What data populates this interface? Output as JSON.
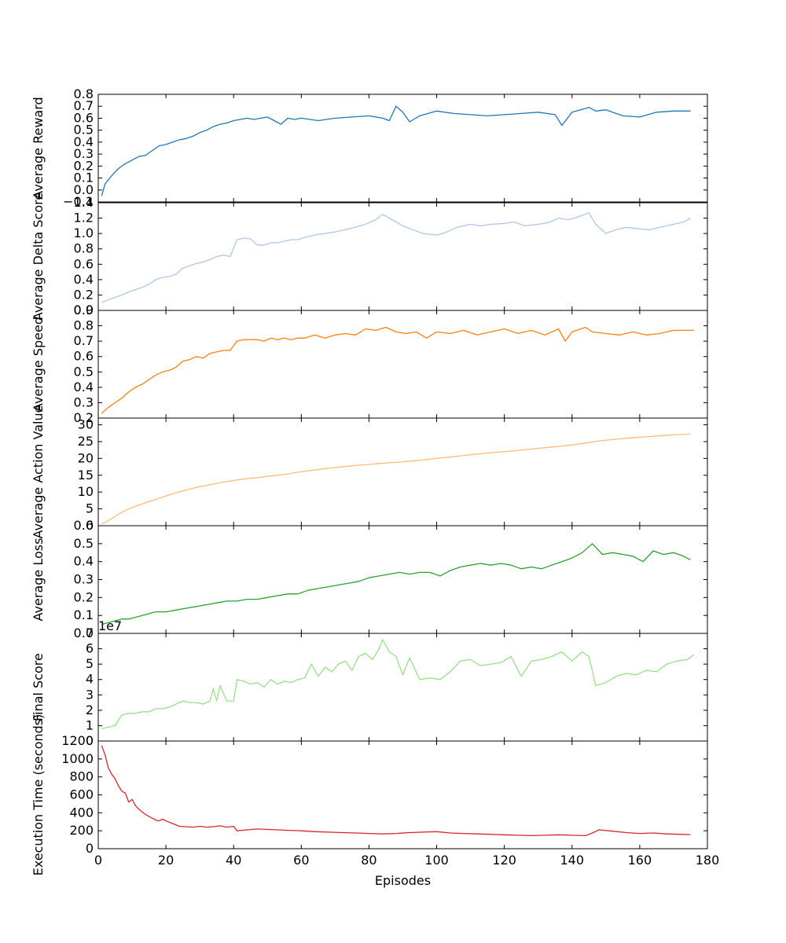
{
  "figure": {
    "xlabel": "Episodes"
  },
  "chart_data": [
    {
      "type": "line",
      "ylabel": "Average Reward",
      "xlim": [
        0,
        180
      ],
      "ylim": [
        -0.1,
        0.8
      ],
      "yticks": [
        "−0.1",
        "0.0",
        "0.1",
        "0.2",
        "0.3",
        "0.4",
        "0.5",
        "0.6",
        "0.7",
        "0.8"
      ],
      "ytick_values": [
        -0.1,
        0.0,
        0.1,
        0.2,
        0.3,
        0.4,
        0.5,
        0.6,
        0.7,
        0.8
      ],
      "color": "#1f77b4",
      "series": [
        {
          "x": [
            1,
            2,
            4,
            6,
            8,
            10,
            12,
            14,
            16,
            18,
            20,
            22,
            24,
            26,
            28,
            30,
            32,
            34,
            36,
            38,
            40,
            42,
            44,
            46,
            48,
            50,
            52,
            54,
            56,
            58,
            60,
            65,
            70,
            75,
            80,
            84,
            86,
            88,
            90,
            92,
            95,
            100,
            105,
            110,
            115,
            120,
            125,
            130,
            135,
            137,
            140,
            145,
            147,
            150,
            155,
            160,
            165,
            170,
            175
          ],
          "y": [
            -0.05,
            0.05,
            0.12,
            0.18,
            0.22,
            0.25,
            0.28,
            0.29,
            0.33,
            0.37,
            0.38,
            0.4,
            0.42,
            0.43,
            0.45,
            0.48,
            0.5,
            0.53,
            0.55,
            0.56,
            0.58,
            0.59,
            0.6,
            0.59,
            0.6,
            0.61,
            0.58,
            0.55,
            0.6,
            0.59,
            0.6,
            0.58,
            0.6,
            0.61,
            0.62,
            0.6,
            0.58,
            0.7,
            0.65,
            0.57,
            0.62,
            0.66,
            0.64,
            0.63,
            0.62,
            0.63,
            0.64,
            0.65,
            0.63,
            0.54,
            0.65,
            0.69,
            0.66,
            0.67,
            0.62,
            0.61,
            0.65,
            0.66,
            0.66
          ]
        }
      ]
    },
    {
      "type": "line",
      "ylabel": "Average Delta Score",
      "xlim": [
        0,
        180
      ],
      "ylim": [
        0.0,
        1.4
      ],
      "yticks": [
        "0.0",
        "0.2",
        "0.4",
        "0.6",
        "0.8",
        "1.0",
        "1.2",
        "1.4"
      ],
      "ytick_values": [
        0.0,
        0.2,
        0.4,
        0.6,
        0.8,
        1.0,
        1.2,
        1.4
      ],
      "color": "#aec7e8",
      "series": [
        {
          "x": [
            1,
            3,
            5,
            7,
            9,
            11,
            13,
            15,
            17,
            19,
            21,
            23,
            25,
            27,
            29,
            31,
            33,
            35,
            37,
            39,
            41,
            43,
            45,
            47,
            49,
            51,
            53,
            55,
            57,
            59,
            61,
            64,
            67,
            70,
            73,
            76,
            79,
            82,
            84,
            86,
            88,
            90,
            93,
            96,
            100,
            103,
            106,
            110,
            113,
            116,
            120,
            123,
            126,
            130,
            133,
            136,
            139,
            142,
            145,
            147,
            150,
            153,
            156,
            160,
            163,
            166,
            170,
            173,
            175
          ],
          "y": [
            0.1,
            0.14,
            0.17,
            0.2,
            0.24,
            0.27,
            0.3,
            0.34,
            0.4,
            0.43,
            0.44,
            0.47,
            0.55,
            0.58,
            0.61,
            0.63,
            0.66,
            0.7,
            0.72,
            0.7,
            0.92,
            0.94,
            0.93,
            0.85,
            0.85,
            0.88,
            0.88,
            0.9,
            0.92,
            0.92,
            0.95,
            0.98,
            1.0,
            1.02,
            1.05,
            1.08,
            1.12,
            1.18,
            1.25,
            1.2,
            1.15,
            1.1,
            1.05,
            1.0,
            0.98,
            1.02,
            1.08,
            1.12,
            1.1,
            1.12,
            1.13,
            1.15,
            1.1,
            1.12,
            1.14,
            1.2,
            1.18,
            1.22,
            1.27,
            1.12,
            1.0,
            1.05,
            1.08,
            1.06,
            1.05,
            1.08,
            1.12,
            1.15,
            1.2
          ]
        }
      ]
    },
    {
      "type": "line",
      "ylabel": "Average Speed",
      "xlim": [
        0,
        180
      ],
      "ylim": [
        0.2,
        0.9
      ],
      "yticks": [
        "0.2",
        "0.3",
        "0.4",
        "0.5",
        "0.6",
        "0.7",
        "0.8",
        "0.9"
      ],
      "ytick_values": [
        0.2,
        0.3,
        0.4,
        0.5,
        0.6,
        0.7,
        0.8,
        0.9
      ],
      "color": "#ff7f0e",
      "series": [
        {
          "x": [
            1,
            3,
            5,
            7,
            9,
            11,
            13,
            15,
            17,
            19,
            21,
            23,
            25,
            27,
            29,
            31,
            33,
            35,
            37,
            39,
            41,
            43,
            45,
            47,
            49,
            51,
            53,
            55,
            57,
            59,
            61,
            64,
            67,
            70,
            73,
            76,
            79,
            82,
            85,
            88,
            91,
            94,
            97,
            100,
            104,
            108,
            112,
            116,
            120,
            124,
            128,
            132,
            136,
            138,
            140,
            144,
            146,
            150,
            154,
            158,
            162,
            166,
            170,
            174,
            176
          ],
          "y": [
            0.23,
            0.27,
            0.3,
            0.33,
            0.37,
            0.4,
            0.42,
            0.45,
            0.48,
            0.5,
            0.51,
            0.53,
            0.57,
            0.58,
            0.6,
            0.59,
            0.62,
            0.63,
            0.64,
            0.64,
            0.7,
            0.71,
            0.71,
            0.71,
            0.7,
            0.72,
            0.71,
            0.72,
            0.71,
            0.72,
            0.72,
            0.74,
            0.72,
            0.74,
            0.75,
            0.74,
            0.78,
            0.77,
            0.79,
            0.76,
            0.75,
            0.76,
            0.72,
            0.76,
            0.75,
            0.77,
            0.74,
            0.76,
            0.78,
            0.75,
            0.77,
            0.74,
            0.78,
            0.7,
            0.76,
            0.79,
            0.76,
            0.75,
            0.74,
            0.76,
            0.74,
            0.75,
            0.77,
            0.77,
            0.77
          ]
        }
      ]
    },
    {
      "type": "line",
      "ylabel": "Average Action Value",
      "xlim": [
        0,
        180
      ],
      "ylim": [
        0,
        32
      ],
      "yticks": [
        "0",
        "5",
        "10",
        "15",
        "20",
        "25",
        "30"
      ],
      "ytick_values": [
        0,
        5,
        10,
        15,
        20,
        25,
        30
      ],
      "color": "#ffbb78",
      "series": [
        {
          "x": [
            1,
            3,
            5,
            7,
            9,
            11,
            13,
            15,
            17,
            20,
            23,
            26,
            29,
            32,
            35,
            38,
            41,
            44,
            47,
            50,
            53,
            56,
            59,
            62,
            65,
            68,
            71,
            74,
            77,
            80,
            83,
            86,
            89,
            92,
            95,
            98,
            101,
            104,
            107,
            110,
            113,
            116,
            120,
            124,
            128,
            132,
            136,
            140,
            144,
            148,
            152,
            156,
            160,
            164,
            168,
            172,
            175
          ],
          "y": [
            0.5,
            1.5,
            2.8,
            4.0,
            5.0,
            5.8,
            6.5,
            7.2,
            7.8,
            8.8,
            9.8,
            10.6,
            11.4,
            12.0,
            12.6,
            13.1,
            13.6,
            14.0,
            14.3,
            14.7,
            15.0,
            15.4,
            15.9,
            16.3,
            16.7,
            17.1,
            17.4,
            17.7,
            18.0,
            18.2,
            18.5,
            18.7,
            18.9,
            19.2,
            19.4,
            19.8,
            20.1,
            20.4,
            20.8,
            21.1,
            21.4,
            21.7,
            22.0,
            22.4,
            22.8,
            23.2,
            23.6,
            24.0,
            24.6,
            25.2,
            25.6,
            26.0,
            26.3,
            26.6,
            26.9,
            27.1,
            27.3
          ]
        }
      ]
    },
    {
      "type": "line",
      "ylabel": "Average Loss",
      "xlim": [
        0,
        180
      ],
      "ylim": [
        0.0,
        0.6
      ],
      "yticks": [
        "0.0",
        "0.1",
        "0.2",
        "0.3",
        "0.4",
        "0.5",
        "0.6"
      ],
      "ytick_values": [
        0.0,
        0.1,
        0.2,
        0.3,
        0.4,
        0.5,
        0.6
      ],
      "color": "#2ca02c",
      "series": [
        {
          "x": [
            1,
            3,
            5,
            7,
            9,
            11,
            13,
            15,
            17,
            20,
            23,
            26,
            29,
            32,
            35,
            38,
            41,
            44,
            47,
            50,
            53,
            56,
            59,
            62,
            65,
            68,
            71,
            74,
            77,
            80,
            83,
            86,
            89,
            92,
            95,
            98,
            101,
            104,
            107,
            110,
            113,
            116,
            119,
            122,
            125,
            128,
            131,
            134,
            137,
            140,
            143,
            146,
            149,
            152,
            155,
            158,
            161,
            164,
            167,
            170,
            173,
            175
          ],
          "y": [
            0.05,
            0.06,
            0.07,
            0.08,
            0.08,
            0.09,
            0.1,
            0.11,
            0.12,
            0.12,
            0.13,
            0.14,
            0.15,
            0.16,
            0.17,
            0.18,
            0.18,
            0.19,
            0.19,
            0.2,
            0.21,
            0.22,
            0.22,
            0.24,
            0.25,
            0.26,
            0.27,
            0.28,
            0.29,
            0.31,
            0.32,
            0.33,
            0.34,
            0.33,
            0.34,
            0.34,
            0.32,
            0.35,
            0.37,
            0.38,
            0.39,
            0.38,
            0.39,
            0.38,
            0.36,
            0.37,
            0.36,
            0.38,
            0.4,
            0.42,
            0.45,
            0.5,
            0.44,
            0.45,
            0.44,
            0.43,
            0.4,
            0.46,
            0.44,
            0.45,
            0.43,
            0.41
          ]
        }
      ]
    },
    {
      "type": "line",
      "ylabel": "Final Score",
      "offset_text": "1e7",
      "xlim": [
        0,
        180
      ],
      "ylim": [
        0,
        7
      ],
      "yticks": [
        "0",
        "1",
        "2",
        "3",
        "4",
        "5",
        "6",
        "7"
      ],
      "ytick_values": [
        0,
        1,
        2,
        3,
        4,
        5,
        6,
        7
      ],
      "color": "#98df8a",
      "series": [
        {
          "x": [
            1,
            3,
            5,
            7,
            9,
            11,
            13,
            15,
            17,
            19,
            21,
            23,
            25,
            27,
            29,
            31,
            33,
            34,
            35,
            36,
            38,
            40,
            41,
            43,
            45,
            47,
            49,
            51,
            53,
            55,
            57,
            59,
            61,
            63,
            65,
            67,
            69,
            71,
            73,
            75,
            77,
            79,
            81,
            83,
            84,
            86,
            88,
            90,
            92,
            95,
            98,
            101,
            104,
            107,
            110,
            113,
            116,
            119,
            122,
            125,
            128,
            131,
            134,
            137,
            140,
            143,
            145,
            147,
            150,
            153,
            156,
            159,
            162,
            165,
            168,
            171,
            174,
            176
          ],
          "y": [
            0.8,
            0.9,
            1.0,
            1.7,
            1.8,
            1.8,
            1.9,
            1.9,
            2.1,
            2.1,
            2.2,
            2.4,
            2.6,
            2.5,
            2.5,
            2.4,
            2.6,
            3.4,
            2.6,
            3.6,
            2.6,
            2.6,
            4.0,
            3.9,
            3.7,
            3.8,
            3.5,
            4.0,
            3.7,
            3.9,
            3.8,
            4.0,
            4.1,
            5.0,
            4.2,
            4.8,
            4.5,
            5.0,
            5.2,
            4.6,
            5.5,
            5.7,
            5.3,
            6.0,
            6.6,
            5.8,
            5.5,
            4.3,
            5.4,
            4.0,
            4.1,
            4.0,
            4.5,
            5.2,
            5.3,
            4.9,
            5.0,
            5.1,
            5.5,
            4.2,
            5.2,
            5.3,
            5.5,
            5.8,
            5.2,
            5.8,
            5.5,
            3.6,
            3.8,
            4.2,
            4.4,
            4.3,
            4.6,
            4.5,
            5.0,
            5.2,
            5.3,
            5.6
          ]
        }
      ]
    },
    {
      "type": "line",
      "ylabel": "Execution Time (seconds)",
      "xlim": [
        0,
        180
      ],
      "ylim": [
        0,
        1200
      ],
      "yticks": [
        "0",
        "200",
        "400",
        "600",
        "800",
        "1000",
        "1200"
      ],
      "ytick_values": [
        0,
        200,
        400,
        600,
        800,
        1000,
        1200
      ],
      "xticks": [
        "0",
        "20",
        "40",
        "60",
        "80",
        "100",
        "120",
        "140",
        "160",
        "180"
      ],
      "xtick_values": [
        0,
        20,
        40,
        60,
        80,
        100,
        120,
        140,
        160,
        180
      ],
      "color": "#d62728",
      "series": [
        {
          "x": [
            1,
            2,
            3,
            4,
            5,
            6,
            7,
            8,
            9,
            10,
            11,
            12,
            13,
            14,
            15,
            16,
            17,
            18,
            19,
            20,
            22,
            24,
            26,
            28,
            30,
            32,
            34,
            36,
            38,
            40,
            41,
            44,
            47,
            50,
            53,
            56,
            60,
            64,
            68,
            72,
            76,
            80,
            84,
            88,
            92,
            96,
            100,
            104,
            108,
            112,
            116,
            120,
            124,
            128,
            132,
            136,
            140,
            144,
            146,
            148,
            152,
            156,
            160,
            164,
            168,
            172,
            175
          ],
          "y": [
            1150,
            1050,
            900,
            830,
            780,
            700,
            640,
            620,
            520,
            550,
            480,
            440,
            410,
            380,
            360,
            340,
            320,
            310,
            330,
            310,
            280,
            250,
            245,
            240,
            250,
            240,
            245,
            255,
            240,
            250,
            200,
            210,
            220,
            215,
            210,
            205,
            200,
            190,
            185,
            180,
            175,
            170,
            165,
            170,
            180,
            185,
            190,
            175,
            170,
            165,
            160,
            155,
            150,
            145,
            150,
            155,
            150,
            145,
            175,
            210,
            195,
            180,
            170,
            175,
            165,
            160,
            158
          ]
        }
      ]
    }
  ]
}
